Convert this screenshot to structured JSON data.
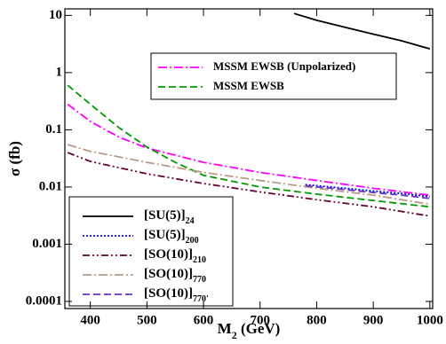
{
  "chart_data": {
    "type": "line",
    "xlabel": [
      "M",
      "2",
      " (GeV)"
    ],
    "ylabel": "σ (fb)",
    "xlim": [
      355,
      1005
    ],
    "xticks": [
      400,
      500,
      600,
      700,
      800,
      900,
      1000
    ],
    "ylim": [
      7.5e-05,
      13
    ],
    "yticks": [
      0.0001,
      0.001,
      0.01,
      0.1,
      1,
      10
    ],
    "log_y": true,
    "series": [
      {
        "name": "MSSM EWSB (Unpolarized)",
        "legend": "upper",
        "color": "#ff00ff",
        "style": "dashdot",
        "x": [
          360,
          400,
          450,
          500,
          600,
          700,
          800,
          900,
          1000
        ],
        "values": [
          0.28,
          0.14,
          0.075,
          0.048,
          0.027,
          0.018,
          0.013,
          0.0095,
          0.0072
        ]
      },
      {
        "name": "MSSM EWSB",
        "legend": "upper",
        "color": "#009900",
        "style": "dashed",
        "x": [
          360,
          400,
          450,
          500,
          550,
          600,
          700,
          800,
          900,
          1000
        ],
        "values": [
          0.6,
          0.28,
          0.11,
          0.05,
          0.027,
          0.016,
          0.01,
          0.0075,
          0.0058,
          0.0045
        ]
      },
      {
        "name": "[SU(5)]",
        "subscript": "24",
        "legend": "lower",
        "color": "#000000",
        "style": "solid",
        "x": [
          760,
          800,
          850,
          900,
          950,
          1000
        ],
        "values": [
          10.8,
          8.2,
          6.2,
          4.7,
          3.6,
          2.6
        ]
      },
      {
        "name": "[SU(5)]",
        "subscript": "200",
        "legend": "lower",
        "color": "#0000ff",
        "style": "dotted",
        "x": [
          780,
          850,
          900,
          950,
          1000
        ],
        "values": [
          0.011,
          0.0095,
          0.0085,
          0.0077,
          0.0068
        ]
      },
      {
        "name": "[SO(10)]",
        "subscript": "210",
        "legend": "lower",
        "color": "#660033",
        "style": "dashdotdot",
        "x": [
          360,
          400,
          500,
          600,
          700,
          800,
          900,
          1000
        ],
        "values": [
          0.04,
          0.028,
          0.017,
          0.0115,
          0.0082,
          0.006,
          0.0045,
          0.0031
        ]
      },
      {
        "name": "[SO(10)]",
        "subscript": "770",
        "legend": "lower",
        "color": "#bb9988",
        "style": "dashdot",
        "x": [
          360,
          400,
          500,
          600,
          700,
          800,
          900,
          1000
        ],
        "values": [
          0.055,
          0.042,
          0.027,
          0.018,
          0.013,
          0.0095,
          0.0072,
          0.005
        ]
      },
      {
        "name": "[SO(10)]",
        "subscript": "770'",
        "legend": "lower",
        "color": "#6633cc",
        "style": "dashed",
        "x": [
          780,
          850,
          900,
          950,
          1000
        ],
        "values": [
          0.0105,
          0.009,
          0.008,
          0.0072,
          0.0063
        ]
      }
    ]
  }
}
